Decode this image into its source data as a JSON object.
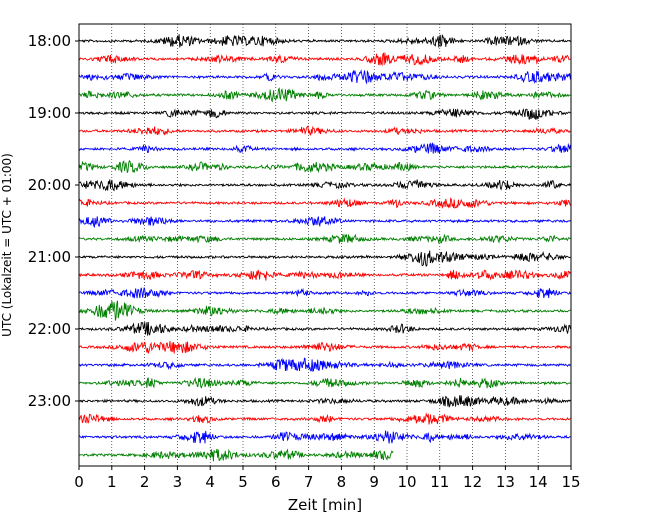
{
  "chart_data": {
    "type": "line",
    "title": "",
    "xlabel": "Zeit  [min]",
    "ylabel": "UTC (Lokalzeit = UTC + 01:00)",
    "xlim": [
      0,
      15
    ],
    "x_ticks": [
      "0",
      "1",
      "2",
      "3",
      "4",
      "5",
      "6",
      "7",
      "8",
      "9",
      "10",
      "11",
      "12",
      "13",
      "14",
      "15"
    ],
    "y_ticks": [
      "18:00",
      "19:00",
      "20:00",
      "21:00",
      "22:00",
      "23:00"
    ],
    "grid": "vertical-dotted",
    "legend": "none",
    "trace_colors": [
      "#000000",
      "#ff0000",
      "#0000ff",
      "#008000"
    ],
    "traces": [
      {
        "start": "18:00",
        "end_min": 15
      },
      {
        "start": "18:15",
        "end_min": 15
      },
      {
        "start": "18:30",
        "end_min": 15
      },
      {
        "start": "18:45",
        "end_min": 15
      },
      {
        "start": "19:00",
        "end_min": 15
      },
      {
        "start": "19:15",
        "end_min": 15
      },
      {
        "start": "19:30",
        "end_min": 15
      },
      {
        "start": "19:45",
        "end_min": 15
      },
      {
        "start": "20:00",
        "end_min": 15
      },
      {
        "start": "20:15",
        "end_min": 15
      },
      {
        "start": "20:30",
        "end_min": 15
      },
      {
        "start": "20:45",
        "end_min": 15
      },
      {
        "start": "21:00",
        "end_min": 15
      },
      {
        "start": "21:15",
        "end_min": 15
      },
      {
        "start": "21:30",
        "end_min": 15
      },
      {
        "start": "21:45",
        "end_min": 15
      },
      {
        "start": "22:00",
        "end_min": 15
      },
      {
        "start": "22:15",
        "end_min": 15
      },
      {
        "start": "22:30",
        "end_min": 15
      },
      {
        "start": "22:45",
        "end_min": 15
      },
      {
        "start": "23:00",
        "end_min": 15
      },
      {
        "start": "23:15",
        "end_min": 15
      },
      {
        "start": "23:30",
        "end_min": 15
      },
      {
        "start": "23:45",
        "end_min": 9.6
      }
    ]
  }
}
